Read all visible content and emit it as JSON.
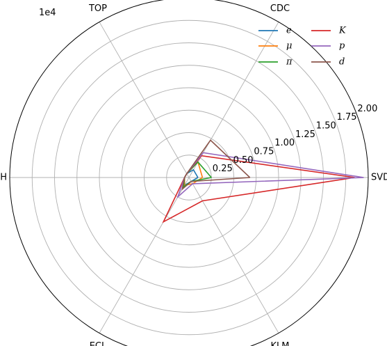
{
  "chart_data": {
    "type": "radar",
    "scale_label": "1e4",
    "axes": [
      "SVD",
      "CDC",
      "TOP",
      "ARICH",
      "ECL",
      "KLM"
    ],
    "radial_range": [
      0,
      2.0
    ],
    "radial_ticks": [
      0.25,
      0.5,
      0.75,
      1.0,
      1.25,
      1.5,
      1.75,
      2.0
    ],
    "radial_tick_labels": [
      "0.25",
      "0.50",
      "0.75",
      "1.00",
      "1.25",
      "1.50",
      "1.75",
      "2.00"
    ],
    "grid": true,
    "legend_position": "top-right",
    "series": [
      {
        "name": "e",
        "color": "#1f77b4",
        "values": [
          0.1,
          0.1,
          0.05,
          0.05,
          0.1,
          0.05
        ]
      },
      {
        "name": "μ",
        "color": "#ff7f0e",
        "values": [
          0.15,
          0.2,
          0.05,
          0.05,
          0.1,
          0.08
        ]
      },
      {
        "name": "π",
        "color": "#2ca02c",
        "values": [
          0.25,
          0.2,
          0.05,
          0.05,
          0.12,
          0.05
        ]
      },
      {
        "name": "K",
        "color": "#d62728",
        "values": [
          1.85,
          0.28,
          0.05,
          0.05,
          0.57,
          0.3
        ]
      },
      {
        "name": "p",
        "color": "#9467bd",
        "values": [
          1.95,
          0.32,
          0.05,
          0.05,
          0.25,
          0.08
        ]
      },
      {
        "name": "d",
        "color": "#8c564b",
        "values": [
          0.68,
          0.48,
          0.05,
          0.05,
          0.15,
          0.05
        ]
      }
    ]
  }
}
